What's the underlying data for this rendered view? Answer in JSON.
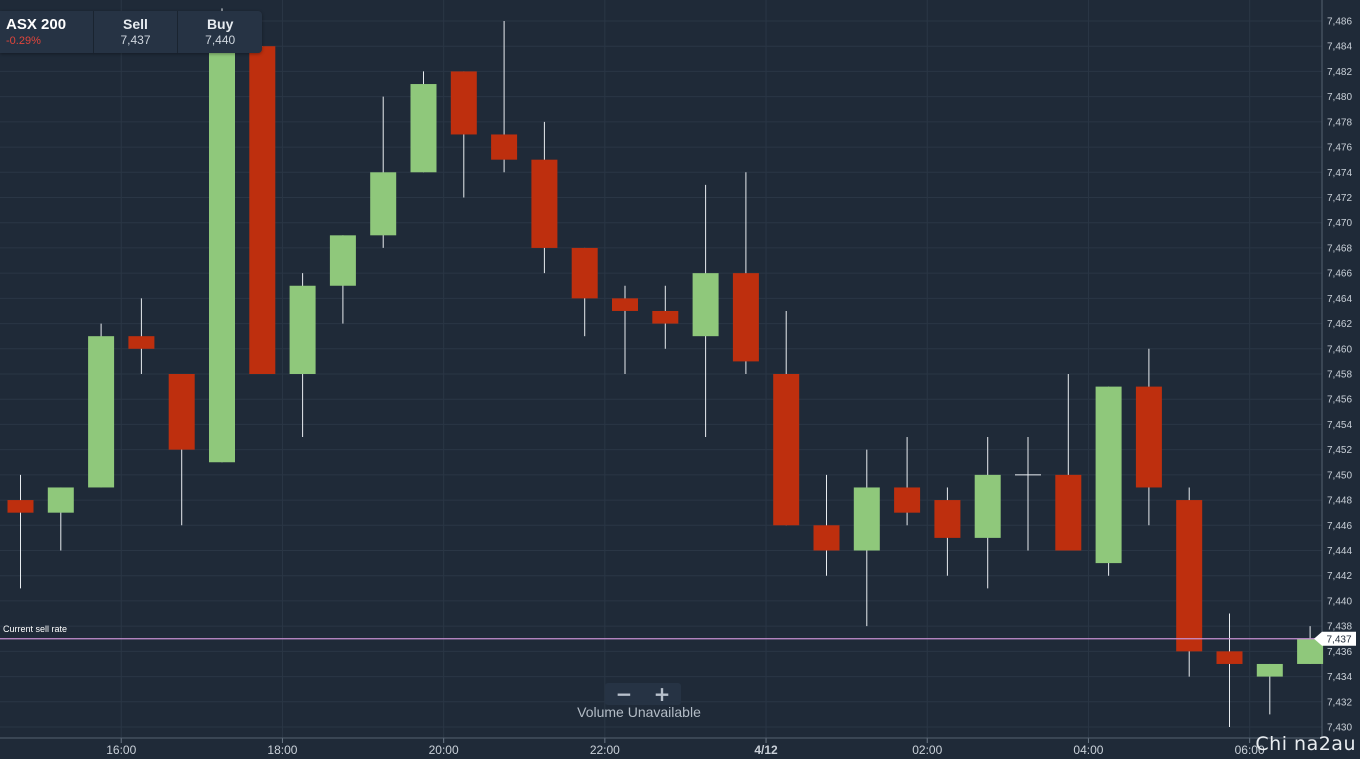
{
  "ticker": {
    "instrument": "ASX 200",
    "change": "-0.29%",
    "sell_label": "Sell",
    "sell_value": "7,437",
    "buy_label": "Buy",
    "buy_value": "7,440"
  },
  "chart_data": {
    "type": "candlestick",
    "xlabel": "",
    "ylabel": "",
    "ylim": [
      7429,
      7487
    ],
    "y_ticks": [
      7430,
      7432,
      7434,
      7436,
      7438,
      7440,
      7442,
      7444,
      7446,
      7448,
      7450,
      7452,
      7454,
      7456,
      7458,
      7460,
      7462,
      7464,
      7466,
      7468,
      7470,
      7472,
      7474,
      7476,
      7478,
      7480,
      7482,
      7484,
      7486
    ],
    "x_ticks": [
      "16:00",
      "18:00",
      "20:00",
      "22:00",
      "4/12",
      "02:00",
      "04:00",
      "06:00"
    ],
    "x_tick_slots": [
      2.5,
      6.5,
      10.5,
      14.5,
      18.5,
      22.5,
      26.5,
      30.5
    ],
    "candles": [
      {
        "o": 7448,
        "h": 7450,
        "l": 7441,
        "c": 7447
      },
      {
        "o": 7447,
        "h": 7449,
        "l": 7444,
        "c": 7449
      },
      {
        "o": 7449,
        "h": 7462,
        "l": 7449,
        "c": 7461
      },
      {
        "o": 7461,
        "h": 7464,
        "l": 7458,
        "c": 7460
      },
      {
        "o": 7458,
        "h": 7458,
        "l": 7446,
        "c": 7452
      },
      {
        "o": 7451,
        "h": 7487,
        "l": 7451,
        "c": 7484
      },
      {
        "o": 7484,
        "h": 7484,
        "l": 7458,
        "c": 7458
      },
      {
        "o": 7458,
        "h": 7466,
        "l": 7453,
        "c": 7465
      },
      {
        "o": 7465,
        "h": 7469,
        "l": 7462,
        "c": 7469
      },
      {
        "o": 7469,
        "h": 7480,
        "l": 7468,
        "c": 7474
      },
      {
        "o": 7474,
        "h": 7482,
        "l": 7474,
        "c": 7481
      },
      {
        "o": 7482,
        "h": 7482,
        "l": 7472,
        "c": 7477
      },
      {
        "o": 7477,
        "h": 7486,
        "l": 7474,
        "c": 7475
      },
      {
        "o": 7475,
        "h": 7478,
        "l": 7466,
        "c": 7468
      },
      {
        "o": 7468,
        "h": 7468,
        "l": 7461,
        "c": 7464
      },
      {
        "o": 7464,
        "h": 7465,
        "l": 7458,
        "c": 7463
      },
      {
        "o": 7463,
        "h": 7465,
        "l": 7460,
        "c": 7462
      },
      {
        "o": 7461,
        "h": 7473,
        "l": 7453,
        "c": 7466
      },
      {
        "o": 7466,
        "h": 7474,
        "l": 7458,
        "c": 7459
      },
      {
        "o": 7458,
        "h": 7463,
        "l": 7446,
        "c": 7446
      },
      {
        "o": 7446,
        "h": 7450,
        "l": 7442,
        "c": 7444
      },
      {
        "o": 7444,
        "h": 7452,
        "l": 7438,
        "c": 7449
      },
      {
        "o": 7449,
        "h": 7453,
        "l": 7446,
        "c": 7447
      },
      {
        "o": 7448,
        "h": 7449,
        "l": 7442,
        "c": 7445
      },
      {
        "o": 7445,
        "h": 7453,
        "l": 7441,
        "c": 7450
      },
      {
        "o": 7450,
        "h": 7453,
        "l": 7444,
        "c": 7450
      },
      {
        "o": 7450,
        "h": 7458,
        "l": 7444,
        "c": 7444
      },
      {
        "o": 7443,
        "h": 7457,
        "l": 7442,
        "c": 7457
      },
      {
        "o": 7457,
        "h": 7460,
        "l": 7446,
        "c": 7449
      },
      {
        "o": 7448,
        "h": 7449,
        "l": 7434,
        "c": 7436
      },
      {
        "o": 7436,
        "h": 7439,
        "l": 7430,
        "c": 7435
      },
      {
        "o": 7434,
        "h": 7435,
        "l": 7431,
        "c": 7435
      },
      {
        "o": 7435,
        "h": 7438,
        "l": 7435,
        "c": 7437
      }
    ],
    "current_rate": {
      "label": "Current sell rate",
      "value": 7437,
      "value_label": "7,437"
    },
    "colors": {
      "up": "#8fc87b",
      "down": "#be2f0e",
      "background": "#1f2a38",
      "grid": "#2a3645",
      "rate_line": "#c890d2"
    },
    "grid": true
  },
  "controls": {
    "zoom_out": "−",
    "zoom_in": "+",
    "volume_text": "Volume Unavailable"
  },
  "watermark": "Chi na2au"
}
